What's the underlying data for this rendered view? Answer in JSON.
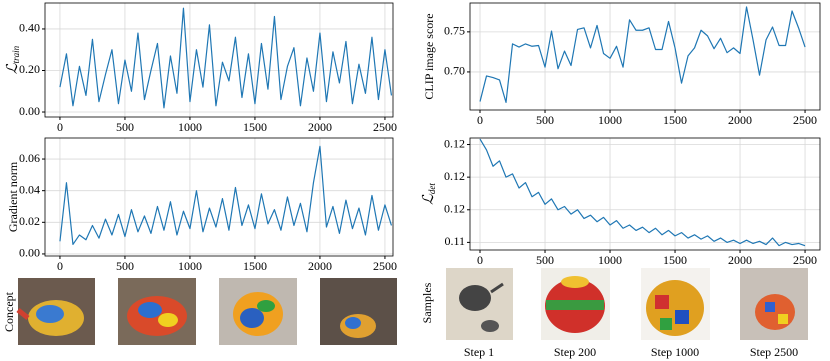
{
  "chart_data": [
    {
      "type": "line",
      "ylabel": "ℒ",
      "ylabel_sub": "train",
      "color": "#1f77b4",
      "grid": true,
      "xlim": [
        -115,
        2562
      ],
      "ylim": [
        -0.024,
        0.525
      ],
      "xticks": [
        0,
        500,
        1000,
        1500,
        2000,
        2500
      ],
      "yticks": [
        {
          "value": 0,
          "label": "0.00"
        },
        {
          "value": 0.2,
          "label": "0.20"
        },
        {
          "value": 0.4,
          "label": "0.40"
        }
      ],
      "x": [
        0,
        50,
        100,
        150,
        200,
        250,
        300,
        350,
        400,
        450,
        500,
        550,
        600,
        650,
        700,
        750,
        800,
        850,
        900,
        950,
        1000,
        1050,
        1100,
        1150,
        1200,
        1250,
        1300,
        1350,
        1400,
        1450,
        1500,
        1550,
        1600,
        1650,
        1700,
        1750,
        1800,
        1850,
        1900,
        1950,
        2000,
        2050,
        2100,
        2150,
        2200,
        2250,
        2300,
        2350,
        2400,
        2450,
        2500,
        2550
      ],
      "values": [
        0.12,
        0.28,
        0.03,
        0.22,
        0.08,
        0.35,
        0.05,
        0.18,
        0.3,
        0.04,
        0.25,
        0.1,
        0.38,
        0.06,
        0.2,
        0.33,
        0.02,
        0.27,
        0.09,
        0.5,
        0.05,
        0.3,
        0.12,
        0.42,
        0.03,
        0.24,
        0.15,
        0.36,
        0.07,
        0.28,
        0.04,
        0.33,
        0.11,
        0.46,
        0.06,
        0.22,
        0.31,
        0.03,
        0.26,
        0.1,
        0.38,
        0.05,
        0.29,
        0.14,
        0.34,
        0.04,
        0.23,
        0.09,
        0.36,
        0.06,
        0.3,
        0.08
      ]
    },
    {
      "type": "line",
      "ylabel": "Gradient norm",
      "color": "#1f77b4",
      "grid": true,
      "xlim": [
        -115,
        2562
      ],
      "ylim": [
        -0.0013,
        0.0733
      ],
      "xticks": [
        0,
        500,
        1000,
        1500,
        2000,
        2500
      ],
      "yticks": [
        {
          "value": 0,
          "label": "0.00"
        },
        {
          "value": 0.02,
          "label": "0.02"
        },
        {
          "value": 0.04,
          "label": "0.04"
        },
        {
          "value": 0.06,
          "label": "0.06"
        }
      ],
      "x": [
        0,
        50,
        100,
        150,
        200,
        250,
        300,
        350,
        400,
        450,
        500,
        550,
        600,
        650,
        700,
        750,
        800,
        850,
        900,
        950,
        1000,
        1050,
        1100,
        1150,
        1200,
        1250,
        1300,
        1350,
        1400,
        1450,
        1500,
        1550,
        1600,
        1650,
        1700,
        1750,
        1800,
        1850,
        1900,
        1950,
        2000,
        2050,
        2100,
        2150,
        2200,
        2250,
        2300,
        2350,
        2400,
        2450,
        2500,
        2550
      ],
      "values": [
        0.008,
        0.045,
        0.006,
        0.012,
        0.009,
        0.018,
        0.01,
        0.022,
        0.012,
        0.025,
        0.011,
        0.028,
        0.014,
        0.024,
        0.013,
        0.03,
        0.015,
        0.033,
        0.012,
        0.027,
        0.016,
        0.04,
        0.014,
        0.029,
        0.017,
        0.035,
        0.015,
        0.042,
        0.018,
        0.031,
        0.016,
        0.038,
        0.019,
        0.028,
        0.015,
        0.036,
        0.018,
        0.032,
        0.014,
        0.045,
        0.068,
        0.017,
        0.03,
        0.013,
        0.034,
        0.016,
        0.029,
        0.012,
        0.037,
        0.015,
        0.031,
        0.018
      ]
    },
    {
      "type": "line",
      "ylabel": "CLIP image score",
      "color": "#1f77b4",
      "grid": true,
      "xlim": [
        -77,
        2615
      ],
      "ylim": [
        0.6525,
        0.786
      ],
      "xticks": [
        0,
        500,
        1000,
        1500,
        2000,
        2500
      ],
      "yticks": [
        {
          "value": 0.7,
          "label": "0.70"
        },
        {
          "value": 0.75,
          "label": "0.75"
        }
      ],
      "x": [
        0,
        50,
        100,
        150,
        200,
        250,
        300,
        350,
        400,
        450,
        500,
        550,
        600,
        650,
        700,
        750,
        800,
        850,
        900,
        950,
        1000,
        1050,
        1100,
        1150,
        1200,
        1250,
        1300,
        1350,
        1400,
        1450,
        1500,
        1550,
        1600,
        1650,
        1700,
        1750,
        1800,
        1850,
        1900,
        1950,
        2000,
        2050,
        2100,
        2150,
        2200,
        2250,
        2300,
        2350,
        2400,
        2450,
        2500
      ],
      "values": [
        0.663,
        0.695,
        0.693,
        0.69,
        0.662,
        0.735,
        0.731,
        0.735,
        0.732,
        0.733,
        0.706,
        0.751,
        0.704,
        0.726,
        0.708,
        0.753,
        0.755,
        0.73,
        0.758,
        0.723,
        0.717,
        0.732,
        0.706,
        0.765,
        0.752,
        0.752,
        0.755,
        0.728,
        0.728,
        0.763,
        0.73,
        0.686,
        0.72,
        0.73,
        0.752,
        0.745,
        0.729,
        0.742,
        0.724,
        0.73,
        0.723,
        0.781,
        0.74,
        0.696,
        0.74,
        0.756,
        0.733,
        0.733,
        0.776,
        0.755,
        0.731
      ]
    },
    {
      "type": "line",
      "ylabel": "ℒ",
      "ylabel_sub": "det",
      "color": "#1f77b4",
      "grid": true,
      "xlim": [
        -77,
        2615
      ],
      "ylim": [
        0.1113,
        0.1216
      ],
      "xticks": [
        0,
        500,
        1000,
        1500,
        2000,
        2500
      ],
      "yticks": [
        {
          "value": 0.112,
          "label": "0.11"
        },
        {
          "value": 0.115,
          "label": "0.12"
        },
        {
          "value": 0.118,
          "label": "0.12"
        },
        {
          "value": 0.121,
          "label": "0.12"
        }
      ],
      "x": [
        0,
        50,
        100,
        150,
        200,
        250,
        300,
        350,
        400,
        450,
        500,
        550,
        600,
        650,
        700,
        750,
        800,
        850,
        900,
        950,
        1000,
        1050,
        1100,
        1150,
        1200,
        1250,
        1300,
        1350,
        1400,
        1450,
        1500,
        1550,
        1600,
        1650,
        1700,
        1750,
        1800,
        1850,
        1900,
        1950,
        2000,
        2050,
        2100,
        2150,
        2200,
        2250,
        2300,
        2350,
        2400,
        2450,
        2500
      ],
      "values": [
        0.1215,
        0.1205,
        0.119,
        0.1195,
        0.118,
        0.1183,
        0.117,
        0.1175,
        0.1162,
        0.1166,
        0.1155,
        0.116,
        0.115,
        0.1153,
        0.1146,
        0.115,
        0.1142,
        0.1145,
        0.1139,
        0.1143,
        0.1136,
        0.114,
        0.1133,
        0.1136,
        0.1131,
        0.1134,
        0.1129,
        0.1133,
        0.1127,
        0.1131,
        0.1126,
        0.1129,
        0.1124,
        0.1127,
        0.1123,
        0.1126,
        0.1121,
        0.1124,
        0.112,
        0.1122,
        0.1119,
        0.1122,
        0.1119,
        0.1121,
        0.1118,
        0.1124,
        0.1117,
        0.112,
        0.1118,
        0.1119,
        0.1117
      ]
    }
  ],
  "image_rows": {
    "concept_label": "Concept",
    "samples_label": "Samples",
    "captions": [
      "Step 1",
      "Step 200",
      "Step 1000",
      "Step 2500"
    ]
  }
}
